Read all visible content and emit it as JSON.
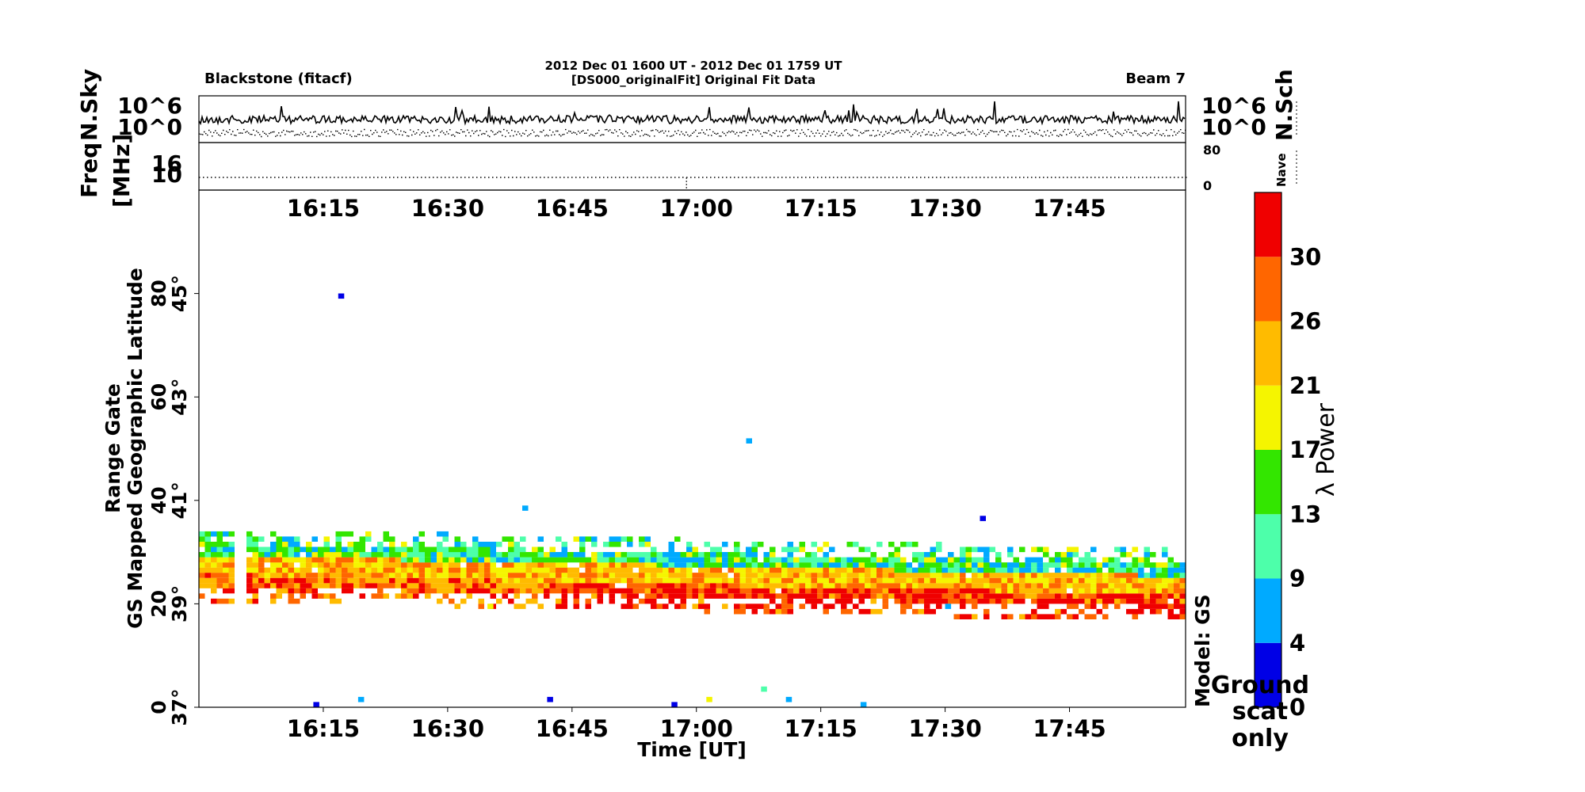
{
  "header": {
    "radar_label": "Blackstone  (fitacf)",
    "title_line1": "2012 Dec 01 1600 UT - 2012 Dec 01 1759 UT",
    "title_line2": "[DS000_originalFit] Original Fit Data",
    "beam_label": "Beam 7"
  },
  "chart_data": [
    {
      "type": "line",
      "panel": "noise",
      "left_labels": [
        "N.Sky",
        "10^6",
        "10^0"
      ],
      "right_labels": [
        "N.Sch",
        "10^6",
        "10^0"
      ],
      "series": [
        {
          "name": "N.Sky",
          "style": "solid",
          "color": "#000000"
        },
        {
          "name": "N.Sch",
          "style": "dotted",
          "color": "#000000"
        }
      ]
    },
    {
      "type": "line",
      "panel": "freq-nave",
      "left_labels": [
        "Freq",
        "[MHz]",
        "16",
        "10"
      ],
      "right_labels": [
        "Nave",
        "80",
        "0"
      ],
      "series": [
        {
          "name": "Freq",
          "style": "dotted",
          "color": "#000000"
        },
        {
          "name": "Nave",
          "style": "dotted",
          "color": "#000000"
        }
      ]
    },
    {
      "type": "heatmap",
      "panel": "range-time",
      "x_ticks": [
        "16:15",
        "16:30",
        "16:45",
        "17:00",
        "17:15",
        "17:30",
        "17:45"
      ],
      "xlabel": "Time [UT]",
      "ylabel_1": "Range Gate",
      "ylabel_2": "GS Mapped Geographic Latitude",
      "y_ticks_gate": [
        "0",
        "20",
        "40",
        "60",
        "80"
      ],
      "y_ticks_lat": [
        "37°",
        "39°",
        "41°",
        "43°",
        "45°"
      ],
      "x_range": [
        "16:00",
        "17:59"
      ],
      "y_range": [
        0,
        100
      ],
      "model_label": "Model: GS",
      "band": {
        "center_gate_start": 27,
        "center_gate_end": 23,
        "width_gates": 12
      },
      "scattered": [
        {
          "t": 16.28,
          "gate": 79,
          "power": 2
        },
        {
          "t": 17.1,
          "gate": 51,
          "power": 6
        },
        {
          "t": 17.57,
          "gate": 36,
          "power": 1
        },
        {
          "t": 16.65,
          "gate": 38,
          "power": 7
        },
        {
          "t": 16.23,
          "gate": 0,
          "power": 2
        },
        {
          "t": 16.7,
          "gate": 1,
          "power": 2
        },
        {
          "t": 16.32,
          "gate": 1,
          "power": 5
        },
        {
          "t": 17.02,
          "gate": 1,
          "power": 20
        },
        {
          "t": 17.13,
          "gate": 3,
          "power": 11
        },
        {
          "t": 17.18,
          "gate": 1,
          "power": 6
        },
        {
          "t": 17.33,
          "gate": 0,
          "power": 6
        },
        {
          "t": 16.95,
          "gate": 0,
          "power": 2
        },
        {
          "t": 16.58,
          "gate": 19,
          "power": 20
        },
        {
          "t": 17.5,
          "gate": 19,
          "power": 6
        }
      ]
    }
  ],
  "colorbar": {
    "label": "λ Power",
    "tick_labels": [
      "0",
      "4",
      "9",
      "13",
      "17",
      "21",
      "26",
      "30"
    ],
    "colors": [
      "#0000e6",
      "#00aaff",
      "#4dffaa",
      "#33e600",
      "#f5f500",
      "#ffbb00",
      "#ff6600",
      "#f00000"
    ],
    "note_lines": [
      "Ground",
      "scat",
      "only"
    ]
  }
}
